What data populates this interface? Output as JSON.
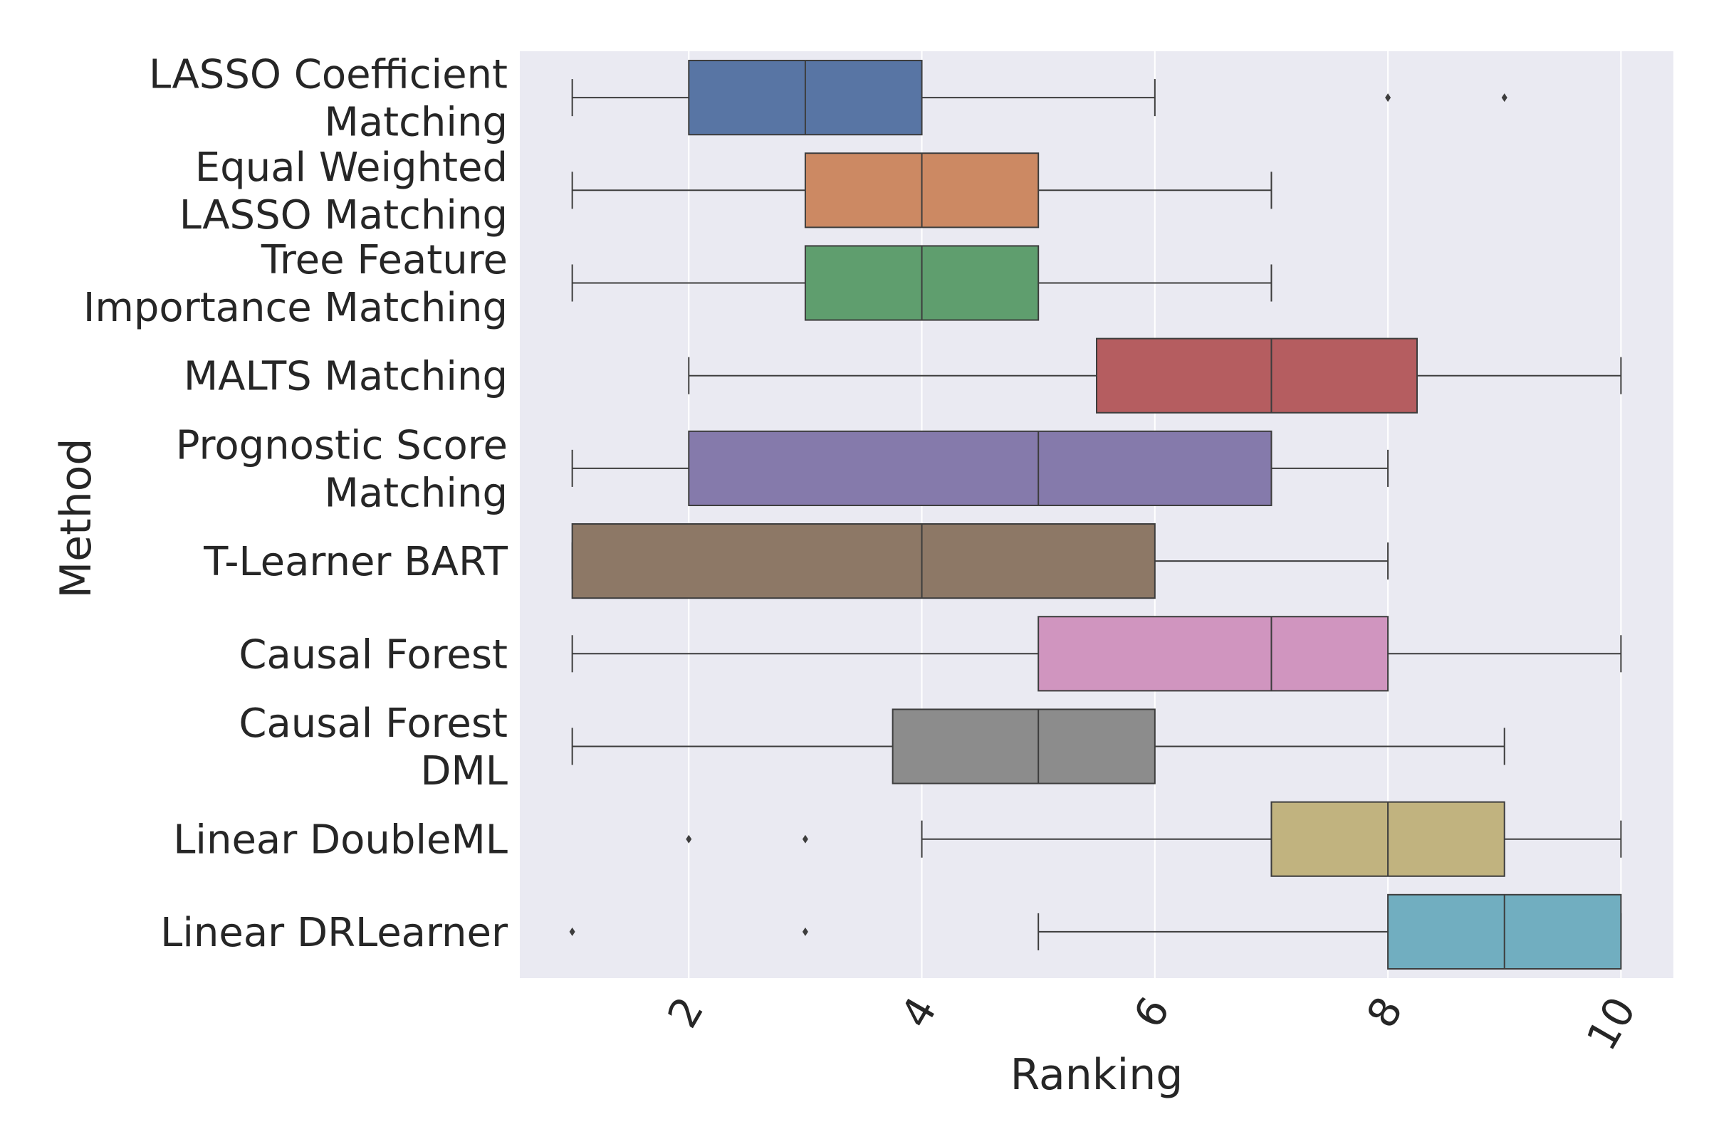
{
  "chart_data": {
    "type": "box",
    "orientation": "horizontal",
    "xlabel": "Ranking",
    "ylabel": "Method",
    "xlim": [
      0.55,
      10.45
    ],
    "xticks": [
      2,
      4,
      6,
      8,
      10
    ],
    "grid": true,
    "legend": "none",
    "background": "#eaeaf2",
    "series": [
      {
        "name": "LASSO Coefficient Matching",
        "label_lines": [
          "LASSO Coefficient",
          "Matching"
        ],
        "color": "#5875a4",
        "whisker_low": 1,
        "q1": 2,
        "median": 3,
        "q3": 4,
        "whisker_high": 6,
        "outliers": [
          8,
          9
        ]
      },
      {
        "name": "Equal Weighted LASSO Matching",
        "label_lines": [
          "Equal Weighted",
          "LASSO Matching"
        ],
        "color": "#cc8963",
        "whisker_low": 1,
        "q1": 3,
        "median": 4,
        "q3": 5,
        "whisker_high": 7,
        "outliers": []
      },
      {
        "name": "Tree Feature Importance Matching",
        "label_lines": [
          "Tree Feature",
          "Importance Matching"
        ],
        "color": "#5f9e6e",
        "whisker_low": 1,
        "q1": 3,
        "median": 4,
        "q3": 5,
        "whisker_high": 7,
        "outliers": []
      },
      {
        "name": "MALTS Matching",
        "label_lines": [
          "MALTS Matching"
        ],
        "color": "#b55d60",
        "whisker_low": 2,
        "q1": 5.5,
        "median": 7,
        "q3": 8.25,
        "whisker_high": 10,
        "outliers": []
      },
      {
        "name": "Prognostic Score Matching",
        "label_lines": [
          "Prognostic Score",
          "Matching"
        ],
        "color": "#857aab",
        "whisker_low": 1,
        "q1": 2,
        "median": 5,
        "q3": 7,
        "whisker_high": 8,
        "outliers": []
      },
      {
        "name": "T-Learner BART",
        "label_lines": [
          "T-Learner BART"
        ],
        "color": "#8d7866",
        "whisker_low": 1,
        "q1": 1,
        "median": 4,
        "q3": 6,
        "whisker_high": 8,
        "outliers": []
      },
      {
        "name": "Causal Forest",
        "label_lines": [
          "Causal Forest"
        ],
        "color": "#d095bf",
        "whisker_low": 1,
        "q1": 5,
        "median": 7,
        "q3": 8,
        "whisker_high": 10,
        "outliers": []
      },
      {
        "name": "Causal Forest DML",
        "label_lines": [
          "Causal Forest",
          "DML"
        ],
        "color": "#8c8c8c",
        "whisker_low": 1,
        "q1": 3.75,
        "median": 5,
        "q3": 6,
        "whisker_high": 9,
        "outliers": []
      },
      {
        "name": "Linear DoubleML",
        "label_lines": [
          "Linear DoubleML"
        ],
        "color": "#c1b37f",
        "whisker_low": 4,
        "q1": 7,
        "median": 8,
        "q3": 9,
        "whisker_high": 10,
        "outliers": [
          2,
          3
        ]
      },
      {
        "name": "Linear DRLearner",
        "label_lines": [
          "Linear DRLearner"
        ],
        "color": "#71aec0",
        "whisker_low": 5,
        "q1": 8,
        "median": 9,
        "q3": 10,
        "whisker_high": 10,
        "outliers": [
          1,
          3
        ]
      }
    ]
  }
}
